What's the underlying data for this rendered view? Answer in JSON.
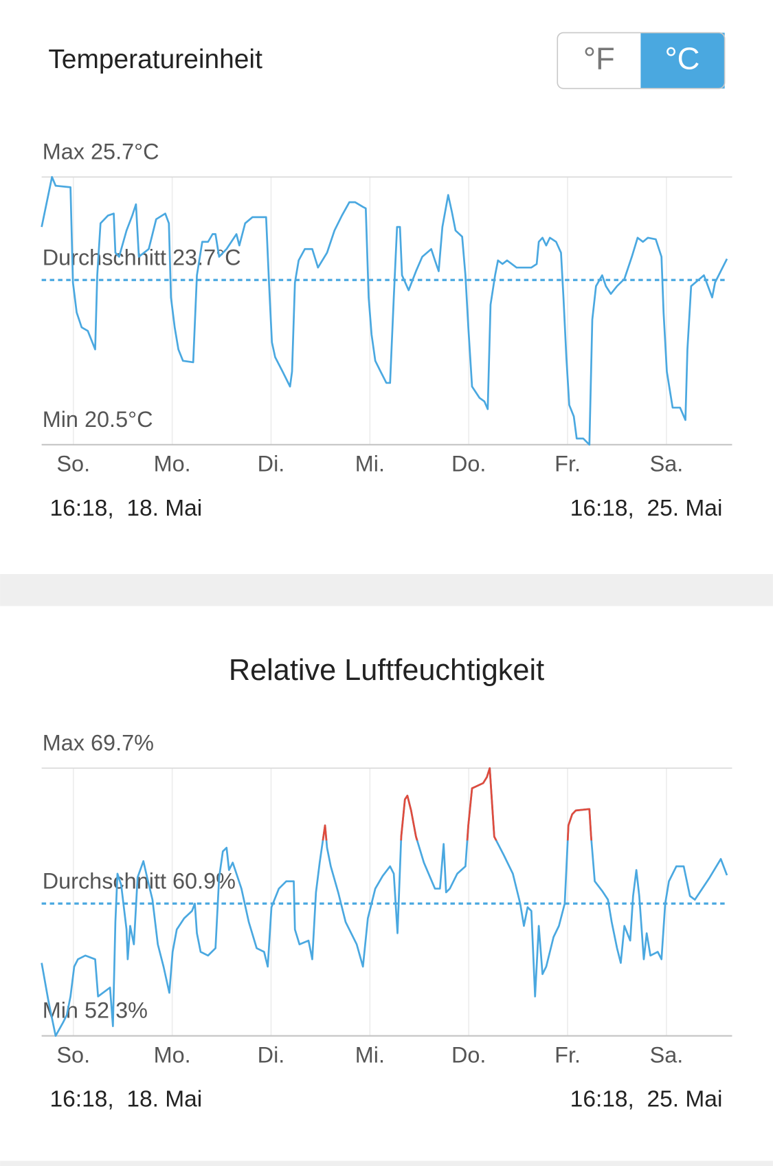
{
  "header": {
    "title": "Temperatureinheit",
    "options": [
      "°F",
      "°C"
    ],
    "selected": 1,
    "selected_color": "#4aa8e0"
  },
  "chart_data": [
    {
      "type": "line",
      "color": "#4aa8e0",
      "xlim": [
        0,
        168
      ],
      "xticks": [
        {
          "value": 7.7,
          "label": "So."
        },
        {
          "value": 31.7,
          "label": "Mo."
        },
        {
          "value": 55.7,
          "label": "Di."
        },
        {
          "value": 79.7,
          "label": "Mi."
        },
        {
          "value": 103.7,
          "label": "Do."
        },
        {
          "value": 127.7,
          "label": "Fr."
        },
        {
          "value": 151.7,
          "label": "Sa."
        }
      ],
      "ylim": [
        20.5,
        25.7
      ],
      "yticks": [
        {
          "value": 20.5,
          "label": "Min 20.5°C"
        },
        {
          "value": 25.7,
          "label": "Max 25.7°C"
        }
      ],
      "average": {
        "value": 23.7,
        "label": "Durchschnitt 23.7°C"
      },
      "start_label": "16:18,  18. Mai",
      "end_label": "16:18,  25. Mai",
      "x": [
        0.0,
        2.5,
        3.4,
        7.0,
        7.6,
        8.5,
        9.7,
        11.2,
        13.0,
        13.5,
        14.3,
        16.1,
        17.5,
        17.9,
        18.8,
        20.6,
        22.0,
        22.9,
        23.6,
        26.0,
        27.8,
        30.0,
        30.9,
        31.4,
        32.3,
        33.2,
        34.3,
        36.8,
        37.7,
        39.0,
        40.4,
        41.5,
        42.2,
        43.1,
        44.9,
        47.3,
        48.0,
        49.4,
        51.2,
        54.5,
        55.2,
        55.9,
        56.7,
        58.5,
        60.3,
        60.8,
        61.5,
        62.4,
        63.9,
        65.7,
        67.1,
        69.3,
        71.1,
        72.9,
        74.7,
        76.1,
        78.0,
        78.7,
        79.4,
        80.1,
        81.0,
        82.3,
        83.7,
        84.6,
        85.5,
        86.3,
        87.0,
        87.5,
        89.1,
        90.9,
        92.4,
        94.6,
        95.5,
        96.4,
        97.3,
        98.7,
        99.6,
        100.5,
        102.1,
        102.9,
        103.6,
        104.5,
        106.3,
        107.5,
        108.3,
        109.0,
        110.1,
        110.8,
        111.9,
        113.0,
        115.3,
        118.9,
        120.2,
        120.7,
        121.6,
        122.5,
        123.4,
        124.9,
        126.1,
        126.7,
        127.4,
        128.1,
        129.2,
        129.9,
        131.5,
        133.0,
        133.7,
        134.6,
        136.1,
        137.0,
        138.2,
        139.7,
        141.5,
        143.3,
        144.7,
        146.0,
        147.2,
        149.1,
        150.5,
        151.0,
        151.8,
        153.2,
        155.0,
        156.3,
        156.8,
        157.7,
        160.8,
        162.8,
        163.5,
        166.4
      ],
      "values": [
        24.73,
        25.7,
        25.53,
        25.5,
        23.65,
        23.07,
        22.78,
        22.71,
        22.35,
        23.79,
        24.8,
        24.95,
        24.99,
        24.23,
        24.15,
        24.66,
        24.95,
        25.17,
        24.15,
        24.3,
        24.88,
        24.99,
        24.8,
        23.36,
        22.78,
        22.35,
        22.13,
        22.1,
        23.79,
        24.44,
        24.44,
        24.59,
        24.59,
        24.15,
        24.3,
        24.59,
        24.37,
        24.8,
        24.92,
        24.92,
        23.65,
        22.49,
        22.2,
        21.92,
        21.63,
        21.92,
        23.65,
        24.08,
        24.3,
        24.3,
        23.94,
        24.23,
        24.66,
        24.95,
        25.21,
        25.21,
        25.12,
        25.09,
        23.36,
        22.64,
        22.13,
        21.92,
        21.7,
        21.7,
        23.36,
        24.73,
        24.73,
        23.79,
        23.5,
        23.87,
        24.15,
        24.3,
        24.08,
        23.87,
        24.73,
        25.35,
        25.02,
        24.66,
        24.54,
        23.79,
        22.78,
        21.63,
        21.41,
        21.34,
        21.19,
        23.22,
        23.79,
        24.08,
        24.01,
        24.08,
        23.94,
        23.94,
        24.01,
        24.44,
        24.52,
        24.37,
        24.52,
        24.44,
        24.23,
        23.36,
        22.2,
        21.27,
        21.05,
        20.62,
        20.62,
        20.5,
        22.93,
        23.58,
        23.79,
        23.58,
        23.43,
        23.58,
        23.72,
        24.15,
        24.52,
        24.44,
        24.52,
        24.49,
        24.15,
        23.07,
        21.92,
        21.22,
        21.22,
        20.98,
        22.35,
        23.58,
        23.79,
        23.36,
        23.65,
        24.11
      ]
    },
    {
      "type": "line",
      "title": "Relative Luftfeuchtigkeit",
      "color": "#4aa8e0",
      "alert_threshold": 65,
      "alert_color": "#e04b3c",
      "xlim": [
        0,
        168
      ],
      "xticks": [
        {
          "value": 7.7,
          "label": "So."
        },
        {
          "value": 31.7,
          "label": "Mo."
        },
        {
          "value": 55.7,
          "label": "Di."
        },
        {
          "value": 79.7,
          "label": "Mi."
        },
        {
          "value": 103.7,
          "label": "Do."
        },
        {
          "value": 127.7,
          "label": "Fr."
        },
        {
          "value": 151.7,
          "label": "Sa."
        }
      ],
      "ylim": [
        52.3,
        69.7
      ],
      "yticks": [
        {
          "value": 52.3,
          "label": "Min 52.3%"
        },
        {
          "value": 69.7,
          "label": "Max 69.7%"
        }
      ],
      "average": {
        "value": 60.9,
        "label": "Durchschnitt 60.9%"
      },
      "start_label": "16:18,  18. Mai",
      "end_label": "16:18,  25. Mai",
      "x": [
        0.0,
        1.6,
        3.4,
        5.2,
        6.1,
        7.0,
        7.9,
        8.8,
        10.6,
        13.0,
        13.7,
        16.6,
        17.3,
        17.9,
        18.4,
        19.3,
        20.6,
        20.9,
        21.5,
        22.4,
        23.3,
        24.7,
        25.6,
        26.9,
        28.2,
        29.6,
        31.0,
        31.8,
        32.8,
        34.6,
        36.5,
        37.2,
        37.7,
        38.6,
        40.4,
        42.2,
        43.1,
        44.0,
        44.9,
        45.5,
        46.4,
        47.3,
        48.5,
        50.3,
        52.2,
        54.0,
        54.9,
        55.8,
        57.6,
        59.4,
        61.2,
        61.5,
        62.6,
        64.8,
        65.7,
        66.6,
        67.5,
        68.8,
        69.3,
        70.2,
        72.0,
        73.8,
        76.5,
        78.0,
        79.2,
        81.0,
        82.8,
        84.6,
        85.5,
        86.4,
        87.3,
        88.2,
        88.8,
        89.7,
        90.9,
        92.8,
        95.5,
        96.7,
        97.6,
        98.2,
        99.1,
        100.9,
        102.9,
        103.6,
        104.5,
        107.2,
        108.1,
        108.8,
        109.9,
        112.2,
        114.4,
        116.2,
        117.1,
        118.0,
        118.9,
        119.8,
        120.7,
        121.6,
        122.5,
        124.3,
        125.6,
        127.0,
        127.9,
        128.8,
        129.7,
        133.0,
        133.4,
        134.3,
        136.1,
        137.5,
        138.4,
        139.7,
        140.6,
        141.5,
        142.9,
        143.6,
        144.4,
        145.1,
        146.2,
        146.9,
        147.8,
        149.6,
        150.5,
        151.4,
        152.3,
        154.1,
        155.9,
        157.4,
        158.6,
        160.4,
        162.2,
        164.9,
        166.4
      ],
      "values": [
        57.04,
        54.62,
        52.3,
        53.17,
        53.65,
        54.86,
        56.8,
        57.28,
        57.52,
        57.28,
        54.86,
        55.44,
        52.93,
        59.7,
        62.84,
        62.11,
        59.21,
        57.28,
        59.45,
        58.25,
        62.6,
        63.66,
        62.6,
        61.15,
        58.25,
        56.8,
        55.1,
        57.76,
        59.21,
        59.94,
        60.42,
        60.9,
        58.97,
        57.76,
        57.52,
        58.0,
        62.6,
        64.29,
        64.53,
        63.08,
        63.56,
        62.84,
        61.87,
        59.7,
        58.0,
        57.76,
        56.8,
        60.66,
        61.87,
        62.35,
        62.35,
        59.21,
        58.25,
        58.49,
        57.28,
        61.63,
        63.56,
        65.98,
        64.53,
        63.32,
        61.63,
        59.7,
        58.25,
        56.8,
        59.94,
        61.87,
        62.69,
        63.32,
        62.84,
        58.97,
        65.25,
        67.67,
        67.91,
        66.95,
        65.25,
        63.56,
        61.87,
        61.87,
        64.77,
        61.63,
        61.87,
        62.84,
        63.32,
        65.98,
        68.39,
        68.73,
        69.12,
        69.7,
        65.25,
        64.05,
        62.84,
        60.9,
        59.45,
        60.66,
        60.42,
        54.86,
        59.45,
        56.31,
        56.8,
        58.73,
        59.45,
        60.9,
        65.98,
        66.7,
        66.95,
        67.04,
        65.25,
        62.35,
        61.72,
        61.15,
        59.7,
        58.0,
        57.04,
        59.45,
        58.49,
        61.39,
        63.08,
        61.39,
        57.28,
        58.97,
        57.52,
        57.76,
        57.28,
        60.9,
        62.35,
        63.32,
        63.32,
        61.39,
        61.15,
        61.87,
        62.6,
        63.8,
        62.74
      ]
    }
  ]
}
